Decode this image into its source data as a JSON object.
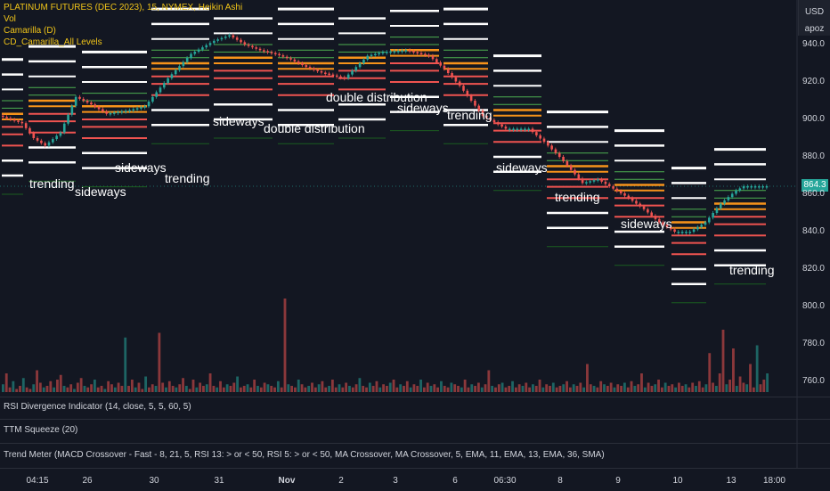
{
  "legend": {
    "title": "PLATINUM FUTURES (DEC 2023), 15, NYMEX, Heikin Ashi",
    "items": [
      "Vol",
      "Camarilla (D)",
      "CD_Camarilla_All Levels"
    ]
  },
  "right_top": {
    "currency": "USD",
    "timezone": "apoz"
  },
  "price_badge": "864.3",
  "panes": {
    "rsi": "RSI Divergence Indicator (14, close, 5, 5, 60, 5)",
    "ttm": "TTM Squeeze (20)",
    "trend": "Trend Meter (MACD Crossover - Fast - 8, 21, 5, RSI 13: > or < 50, RSI 5: > or < 50, MA Crossover, MA Crossover, 5, EMA, 11, EMA, 13, EMA, 36, SMA)"
  },
  "annotations": [
    {
      "text": "trending"
    },
    {
      "text": "sideways"
    },
    {
      "text": "sideways"
    },
    {
      "text": "trending"
    },
    {
      "text": "sideways"
    },
    {
      "text": "double distribution"
    },
    {
      "text": "double distribution"
    },
    {
      "text": "sideways"
    },
    {
      "text": "trending"
    },
    {
      "text": "sideways"
    },
    {
      "text": "trending"
    },
    {
      "text": "sideways"
    },
    {
      "text": "trending"
    }
  ],
  "time_axis": {
    "labels": [
      "04:15",
      "26",
      "30",
      "31",
      "Nov",
      "2",
      "3",
      "6",
      "06:30",
      "8",
      "9",
      "10",
      "13"
    ],
    "end_label": "18:00"
  },
  "chart_data": {
    "type": "candlestick",
    "title": "PLATINUM FUTURES (DEC 2023), 15, NYMEX, Heikin Ashi",
    "y_ticks": [
      940,
      920,
      900,
      880,
      860,
      840,
      820,
      800,
      780,
      760
    ],
    "y_range": [
      750,
      955
    ],
    "last_price": 864.3,
    "colors": {
      "up": "#26a69a",
      "down": "#ef5350",
      "white_level": "#ffffff",
      "orange_level": "#f7931a",
      "green_level": "#4caf50",
      "dark_green_level": "#1b5e20"
    },
    "price_path": [
      [
        0,
        902
      ],
      [
        0.03,
        898
      ],
      [
        0.045,
        890
      ],
      [
        0.06,
        886
      ],
      [
        0.08,
        893
      ],
      [
        0.1,
        912
      ],
      [
        0.12,
        908
      ],
      [
        0.14,
        903
      ],
      [
        0.17,
        905
      ],
      [
        0.19,
        907
      ],
      [
        0.22,
        922
      ],
      [
        0.25,
        935
      ],
      [
        0.28,
        942
      ],
      [
        0.3,
        945
      ],
      [
        0.32,
        940
      ],
      [
        0.34,
        937
      ],
      [
        0.36,
        935
      ],
      [
        0.38,
        932
      ],
      [
        0.4,
        928
      ],
      [
        0.42,
        925
      ],
      [
        0.45,
        922
      ],
      [
        0.48,
        934
      ],
      [
        0.5,
        936
      ],
      [
        0.53,
        937
      ],
      [
        0.56,
        934
      ],
      [
        0.58,
        927
      ],
      [
        0.6,
        918
      ],
      [
        0.63,
        902
      ],
      [
        0.66,
        895
      ],
      [
        0.69,
        895
      ],
      [
        0.71,
        888
      ],
      [
        0.73,
        880
      ],
      [
        0.76,
        866
      ],
      [
        0.78,
        868
      ],
      [
        0.8,
        863
      ],
      [
        0.82,
        858
      ],
      [
        0.84,
        852
      ],
      [
        0.86,
        845
      ],
      [
        0.88,
        840
      ],
      [
        0.9,
        840
      ],
      [
        0.92,
        845
      ],
      [
        0.94,
        855
      ],
      [
        0.96,
        862
      ],
      [
        0.97,
        864.3
      ]
    ],
    "volume": [
      5,
      12,
      3,
      7,
      2,
      4,
      9,
      3,
      2,
      5,
      14,
      6,
      3,
      4,
      7,
      3,
      8,
      11,
      4,
      3,
      5,
      2,
      6,
      9,
      4,
      3,
      5,
      8,
      3,
      4,
      2,
      7,
      5,
      3,
      6,
      4,
      35,
      4,
      8,
      3,
      6,
      2,
      10,
      3,
      5,
      4,
      38,
      6,
      3,
      7,
      4,
      3,
      5,
      9,
      4,
      2,
      8,
      3,
      6,
      4,
      5,
      12,
      4,
      3,
      7,
      3,
      5,
      4,
      6,
      10,
      3,
      4,
      5,
      3,
      8,
      4,
      3,
      6,
      5,
      4,
      3,
      7,
      3,
      60,
      5,
      4,
      3,
      8,
      5,
      3,
      4,
      6,
      3,
      5,
      7,
      3,
      4,
      8,
      3,
      5,
      3,
      6,
      4,
      3,
      5,
      9,
      4,
      3,
      6,
      4,
      7,
      3,
      5,
      4,
      6,
      8,
      3,
      5,
      4,
      7,
      3,
      5,
      4,
      8,
      3,
      6,
      4,
      5,
      3,
      7,
      4,
      3,
      6,
      5,
      4,
      3,
      8,
      3,
      5,
      4,
      6,
      3,
      5,
      14,
      4,
      3,
      5,
      6,
      3,
      4,
      7,
      3,
      5,
      4,
      6,
      3,
      5,
      4,
      8,
      3,
      5,
      4,
      6,
      3,
      4,
      5,
      7,
      3,
      5,
      4,
      6,
      3,
      18,
      5,
      4,
      3,
      7,
      5,
      4,
      6,
      3,
      5,
      4,
      6,
      3,
      7,
      4,
      5,
      12,
      3,
      6,
      4,
      5,
      8,
      3,
      6,
      4,
      5,
      3,
      6,
      4,
      5,
      3,
      6,
      4,
      7,
      3,
      5,
      25,
      6,
      4,
      12,
      40,
      5,
      8,
      28,
      4,
      10,
      6,
      5,
      18,
      3,
      30,
      5,
      8,
      12
    ],
    "volume_colors_seed": 7
  }
}
